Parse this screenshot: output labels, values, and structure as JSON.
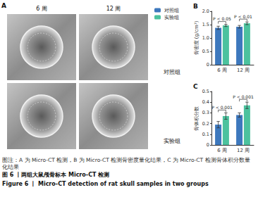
{
  "figure": {
    "panel_a": {
      "label": "A",
      "columns": [
        "6 周",
        "12 周"
      ],
      "rows": [
        "对照组",
        "实验组"
      ]
    },
    "caption": {
      "note": "图注：A 为 Micro-CT 检测，B 为 Micro-CT 检测骨密度量化结果，C 为 Micro-CT 检测骨体积分数量化结果",
      "title_cn": "图 6 丨两组大鼠颅骨标本 Micro-CT 检测",
      "title_en": "Figure 6 丨 Micro-CT detection of rat skull samples in two groups"
    }
  },
  "chart_data": [
    {
      "type": "bar",
      "panel": "B",
      "ylabel": "骨密度 (g/cm³)",
      "categories": [
        "6 周",
        "12 周"
      ],
      "series": [
        {
          "name": "对照组",
          "color": "#3d78bd",
          "values": [
            1.38,
            1.42
          ],
          "errors": [
            0.06,
            0.05
          ]
        },
        {
          "name": "实验组",
          "color": "#4cc29e",
          "values": [
            1.47,
            1.55
          ],
          "errors": [
            0.04,
            0.05
          ]
        }
      ],
      "annotations": [
        "P < 0.05",
        "P < 0.01"
      ],
      "ylim": [
        0,
        2
      ],
      "yticks": [
        0,
        0.5,
        {
          "value": 1,
          "label": "1.0"
        },
        1.5,
        {
          "value": 2,
          "label": "2.0"
        }
      ],
      "grid": false,
      "legend": "left"
    },
    {
      "type": "bar",
      "panel": "C",
      "ylabel": "骨体积分数",
      "categories": [
        "6 周",
        "12 周"
      ],
      "series": [
        {
          "name": "对照组",
          "color": "#3d78bd",
          "values": [
            0.19,
            0.28
          ],
          "errors": [
            0.03,
            0.02
          ]
        },
        {
          "name": "实验组",
          "color": "#4cc29e",
          "values": [
            0.27,
            0.37
          ],
          "errors": [
            0.03,
            0.03
          ]
        }
      ],
      "annotations": [
        "P < 0.001",
        "P < 0.001"
      ],
      "ylim": [
        0,
        0.5
      ],
      "yticks": [
        0,
        0.1,
        0.2,
        0.3,
        0.4,
        0.5
      ],
      "grid": false
    }
  ]
}
